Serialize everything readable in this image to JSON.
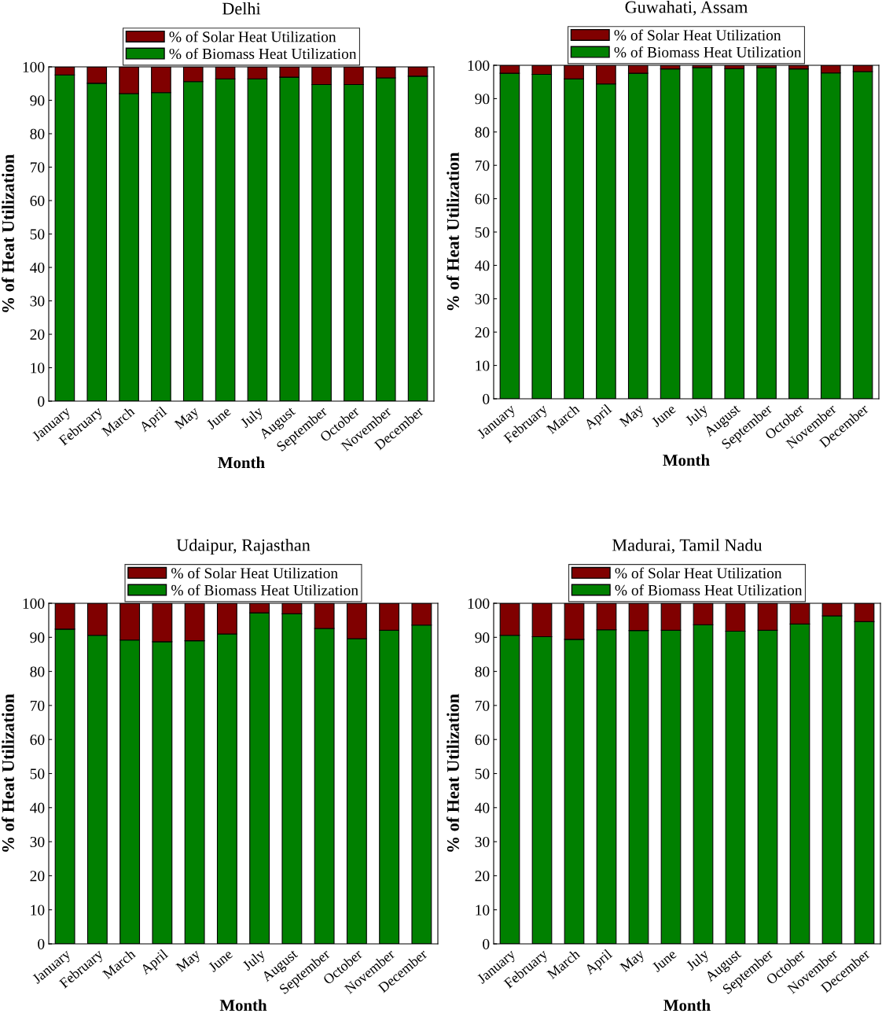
{
  "chart_data": [
    {
      "type": "bar",
      "title": "Delhi",
      "xlabel": "Month",
      "ylabel": "% of Heat Utilization",
      "stacked": true,
      "legend": "top",
      "ylim": [
        0,
        100
      ],
      "yticks": [
        0,
        10,
        20,
        30,
        40,
        50,
        60,
        70,
        80,
        90,
        100
      ],
      "grid": false,
      "categories": [
        "January",
        "February",
        "March",
        "April",
        "May",
        "June",
        "July",
        "August",
        "September",
        "October",
        "November",
        "December"
      ],
      "series": [
        {
          "name": "% of Biomass Heat Utilization",
          "color": "#008000",
          "values": [
            97.6,
            95.1,
            92.0,
            92.3,
            95.6,
            96.4,
            96.4,
            96.9,
            94.7,
            94.7,
            96.7,
            97.2
          ]
        },
        {
          "name": "% of Solar Heat Utilization",
          "color": "#800000",
          "values": [
            2.4,
            4.9,
            8.0,
            7.7,
            4.4,
            3.6,
            3.6,
            3.1,
            5.3,
            5.3,
            3.3,
            2.8
          ]
        }
      ]
    },
    {
      "type": "bar",
      "title": "Guwahati, Assam",
      "xlabel": "Month",
      "ylabel": "% of Heat Utilization",
      "stacked": true,
      "legend": "top",
      "ylim": [
        0,
        100
      ],
      "yticks": [
        0,
        10,
        20,
        30,
        40,
        50,
        60,
        70,
        80,
        90,
        100
      ],
      "grid": false,
      "categories": [
        "January",
        "February",
        "March",
        "April",
        "May",
        "June",
        "July",
        "August",
        "September",
        "October",
        "November",
        "December"
      ],
      "series": [
        {
          "name": "% of Biomass Heat Utilization",
          "color": "#008000",
          "values": [
            97.6,
            97.3,
            95.9,
            94.4,
            97.6,
            98.9,
            99.3,
            99.0,
            99.3,
            98.9,
            97.7,
            98.1
          ]
        },
        {
          "name": "% of Solar Heat Utilization",
          "color": "#800000",
          "values": [
            2.4,
            2.7,
            4.1,
            5.6,
            2.4,
            1.1,
            0.7,
            1.0,
            0.7,
            1.1,
            2.3,
            1.9
          ]
        }
      ]
    },
    {
      "type": "bar",
      "title": "Udaipur, Rajasthan",
      "xlabel": "Month",
      "ylabel": "% of Heat Utilization",
      "stacked": true,
      "legend": "top",
      "ylim": [
        0,
        100
      ],
      "yticks": [
        0,
        10,
        20,
        30,
        40,
        50,
        60,
        70,
        80,
        90,
        100
      ],
      "grid": false,
      "categories": [
        "January",
        "February",
        "March",
        "April",
        "May",
        "June",
        "July",
        "August",
        "September",
        "October",
        "November",
        "December"
      ],
      "series": [
        {
          "name": "% of Biomass Heat Utilization",
          "color": "#008000",
          "values": [
            92.4,
            90.6,
            89.2,
            88.7,
            89.0,
            91.0,
            97.2,
            96.9,
            92.6,
            89.6,
            92.1,
            93.6
          ]
        },
        {
          "name": "% of Solar Heat Utilization",
          "color": "#800000",
          "values": [
            7.6,
            9.4,
            10.8,
            11.3,
            11.0,
            9.0,
            2.8,
            3.1,
            7.4,
            10.4,
            7.9,
            6.4
          ]
        }
      ]
    },
    {
      "type": "bar",
      "title": "Madurai, Tamil Nadu",
      "xlabel": "Month",
      "ylabel": "% of Heat Utilization",
      "stacked": true,
      "legend": "top",
      "ylim": [
        0,
        100
      ],
      "yticks": [
        0,
        10,
        20,
        30,
        40,
        50,
        60,
        70,
        80,
        90,
        100
      ],
      "grid": false,
      "categories": [
        "January",
        "February",
        "March",
        "April",
        "May",
        "June",
        "July",
        "August",
        "September",
        "October",
        "November",
        "December"
      ],
      "series": [
        {
          "name": "% of Biomass Heat Utilization",
          "color": "#008000",
          "values": [
            90.6,
            90.2,
            89.4,
            92.2,
            92.0,
            92.1,
            93.7,
            91.8,
            92.1,
            93.9,
            96.3,
            94.6
          ]
        },
        {
          "name": "% of Solar Heat Utilization",
          "color": "#800000",
          "values": [
            9.4,
            9.8,
            10.6,
            7.8,
            8.0,
            7.9,
            6.3,
            8.2,
            7.9,
            6.1,
            3.7,
            5.4
          ]
        }
      ]
    }
  ]
}
